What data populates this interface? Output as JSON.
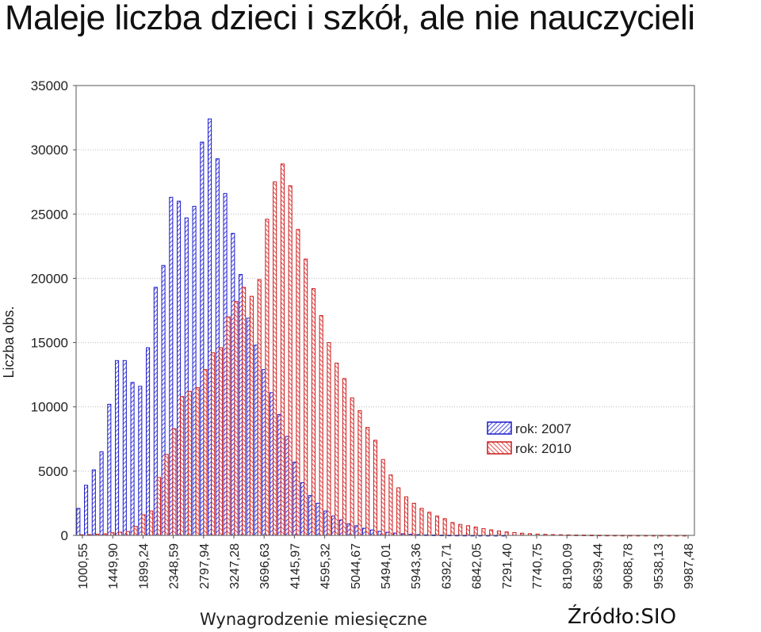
{
  "chart_data": {
    "type": "bar",
    "title": "Maleje liczba dzieci i szkół, ale nie nauczycieli",
    "xlabel": "Wynagrodzenie miesięczne",
    "ylabel": "Liczba obs.",
    "source": "Źródło:SIO",
    "ylim": [
      0,
      35000
    ],
    "y_ticks": [
      "0",
      "5000",
      "10000",
      "15000",
      "20000",
      "25000",
      "30000",
      "35000"
    ],
    "x_tick_labels": [
      "1000,55",
      "1449,90",
      "1899,24",
      "2348,59",
      "2797,94",
      "3247,28",
      "3696,63",
      "4145,97",
      "4595,32",
      "5044,67",
      "5494,01",
      "5943,36",
      "6392,71",
      "6842,05",
      "7291,40",
      "7740,75",
      "8190,09",
      "8639,44",
      "9088,78",
      "9538,13",
      "9987,48"
    ],
    "grid": true,
    "legend_position": "right",
    "series": [
      {
        "name": "rok: 2007",
        "color": "#1a1acc",
        "values": [
          2100,
          3900,
          5100,
          6500,
          10200,
          13600,
          13600,
          11900,
          11600,
          14600,
          19300,
          21000,
          26300,
          26000,
          24700,
          25600,
          30600,
          32400,
          29300,
          26600,
          23500,
          20300,
          16900,
          14800,
          12900,
          11100,
          9400,
          7700,
          5700,
          4100,
          3100,
          2500,
          1900,
          1500,
          1200,
          900,
          750,
          550,
          420,
          320,
          240,
          180,
          130,
          90,
          60,
          40,
          30,
          20,
          15,
          10,
          8,
          5,
          3,
          2,
          1,
          1,
          0,
          0,
          0,
          0,
          0,
          0,
          0,
          0,
          0,
          0,
          0,
          0,
          0,
          0,
          0,
          0,
          0,
          0,
          0,
          0,
          0,
          0,
          0,
          0
        ]
      },
      {
        "name": "rok: 2010",
        "color": "#cc1a1a",
        "values": [
          50,
          60,
          90,
          120,
          200,
          250,
          300,
          700,
          1600,
          1900,
          4500,
          6300,
          8300,
          10800,
          11200,
          11500,
          12900,
          14200,
          14600,
          17000,
          18200,
          19300,
          18600,
          19900,
          24600,
          27500,
          28900,
          27200,
          23800,
          21500,
          19200,
          17100,
          15000,
          13400,
          12200,
          10700,
          9700,
          8400,
          7400,
          5900,
          4700,
          3700,
          3000,
          2500,
          2100,
          1800,
          1500,
          1300,
          1000,
          850,
          750,
          650,
          530,
          430,
          340,
          270,
          220,
          170,
          130,
          100,
          80,
          60,
          50,
          40,
          30,
          25,
          20,
          15,
          10,
          8,
          6,
          5,
          4,
          3,
          2,
          2,
          1,
          1,
          1,
          0
        ]
      }
    ]
  }
}
